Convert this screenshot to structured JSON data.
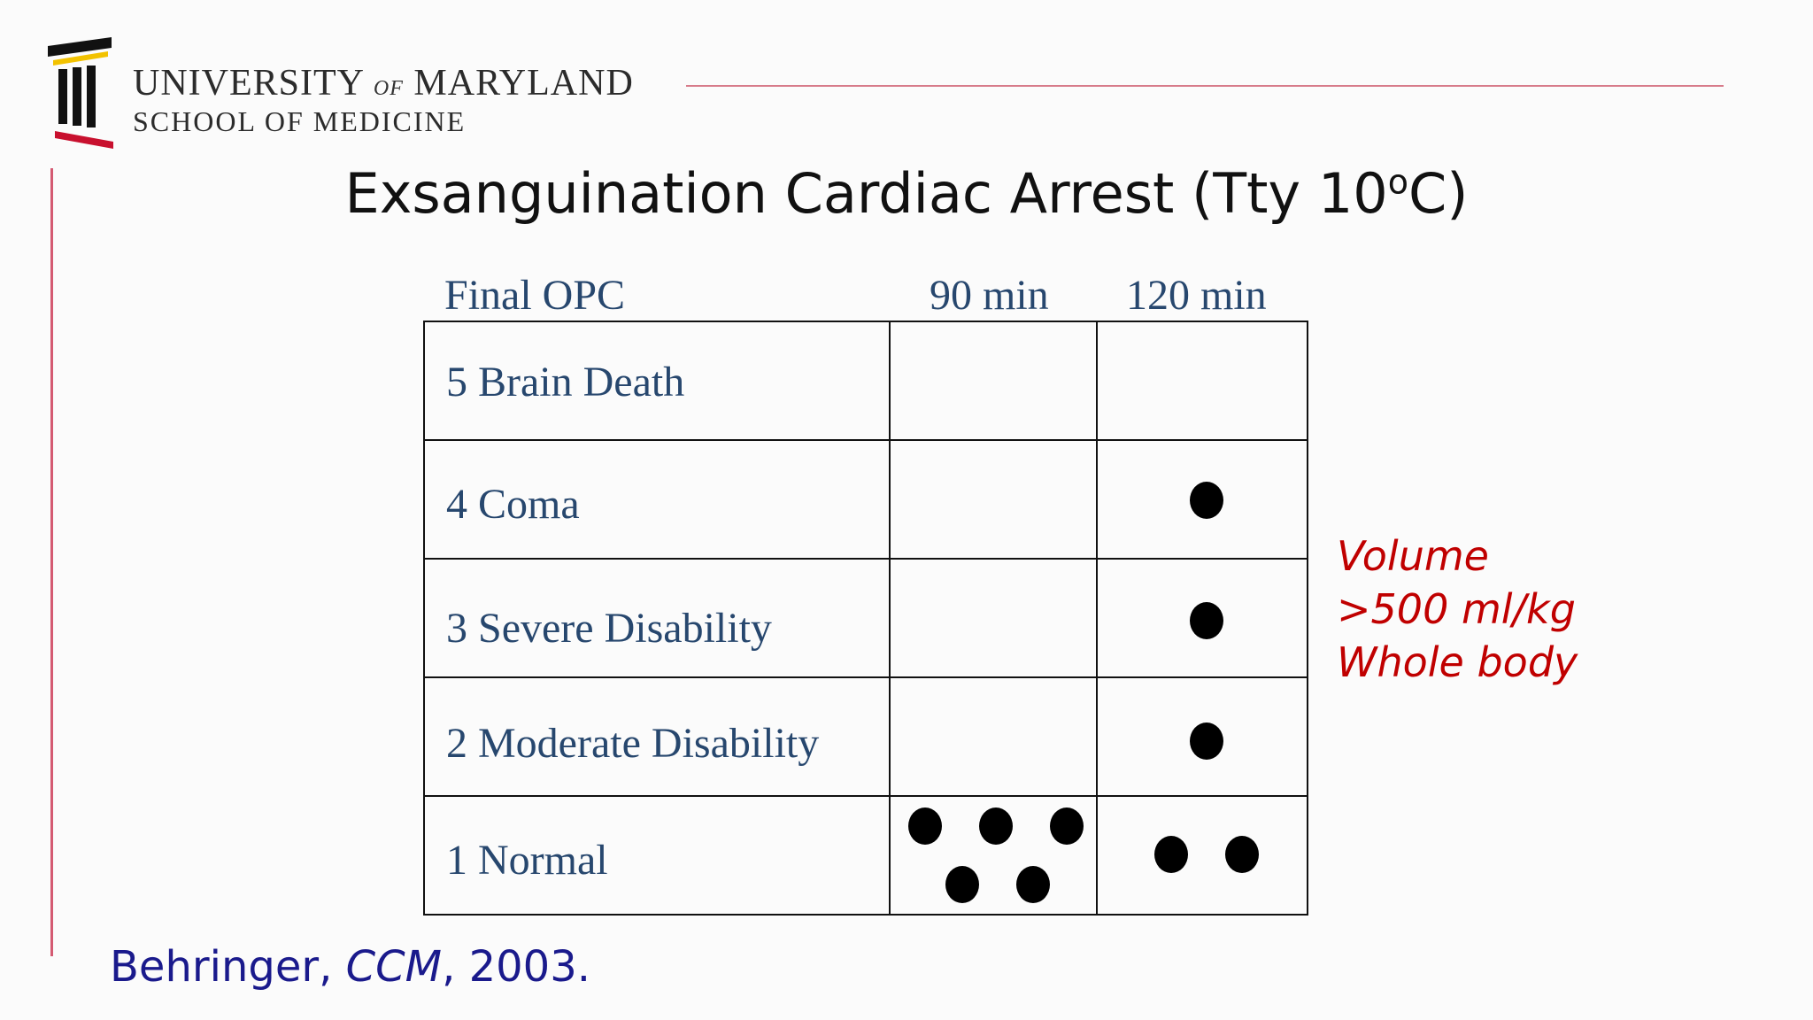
{
  "header": {
    "university": "UNIVERSITY",
    "of": "of",
    "state": "MARYLAND",
    "school": "SCHOOL OF MEDICINE",
    "accent_color": "#d45a72"
  },
  "title": {
    "main": "Exsanguination Cardiac Arrest (Tty 10",
    "sup": "o",
    "end": "C)"
  },
  "table": {
    "header_label": "Final OPC",
    "columns": [
      "90 min",
      "120 min"
    ],
    "rows": [
      {
        "label": "5 Brain Death",
        "count_90": 0,
        "count_120": 0
      },
      {
        "label": "4 Coma",
        "count_90": 0,
        "count_120": 1
      },
      {
        "label": "3 Severe Disability",
        "count_90": 0,
        "count_120": 1
      },
      {
        "label": "2 Moderate Disability",
        "count_90": 0,
        "count_120": 1
      },
      {
        "label": "1 Normal",
        "count_90": 5,
        "count_120": 2
      }
    ]
  },
  "annotation": {
    "lines": [
      "Volume",
      ">500 ml/kg",
      "Whole body"
    ],
    "color": "#c00000"
  },
  "citation": {
    "author": "Behringer, ",
    "journal": "CCM",
    "year": ", 2003."
  }
}
